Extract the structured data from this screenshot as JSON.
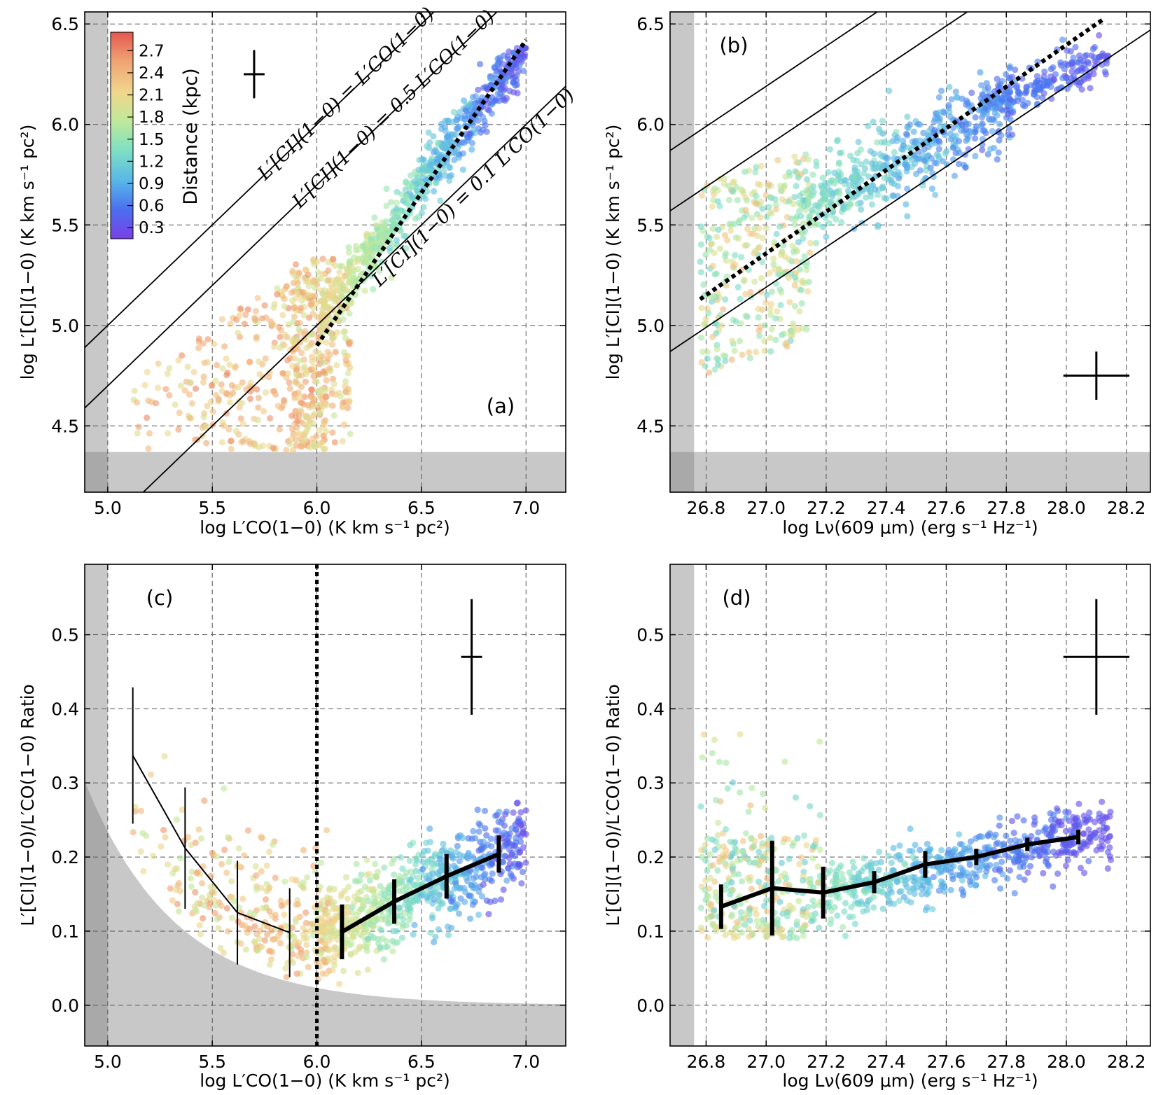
{
  "figure": {
    "colorbar": {
      "title": "Distance (kpc)",
      "ticks": [
        "2.7",
        "2.4",
        "2.1",
        "1.8",
        "1.5",
        "1.2",
        "0.9",
        "0.6",
        "0.3"
      ],
      "tick_values": [
        2.7,
        2.4,
        2.1,
        1.8,
        1.5,
        1.2,
        0.9,
        0.6,
        0.3
      ],
      "range": [
        0.15,
        2.95
      ],
      "colors": [
        "#7b3fe6",
        "#4a6ff0",
        "#59b6e8",
        "#7fe0c2",
        "#bfe99a",
        "#f1d68c",
        "#f0a373",
        "#e4574e"
      ]
    }
  },
  "chart_data": [
    {
      "panel": "a",
      "type": "scatter",
      "label": "(a)",
      "xlabel": "log L′CO(1−0) (K km s⁻¹ pc²)",
      "ylabel": "log L′[CI](1−0) (K km s⁻¹ pc²)",
      "xlim": [
        4.89,
        7.19
      ],
      "ylim": [
        4.17,
        6.56
      ],
      "xticks": [
        "5.0",
        "5.5",
        "6.0",
        "6.5",
        "7.0"
      ],
      "xtick_values": [
        5.0,
        5.5,
        6.0,
        6.5,
        7.0
      ],
      "yticks": [
        "4.5",
        "5.0",
        "5.5",
        "6.0",
        "6.5"
      ],
      "ytick_values": [
        4.5,
        5.0,
        5.5,
        6.0,
        6.5
      ],
      "shaded_left_below_x": 5.0,
      "shaded_bottom_below_y": 4.37,
      "reference_lines": [
        {
          "label": "L′[CI](1−0) = L′CO(1−0)",
          "log_ratio": 0.0
        },
        {
          "label": "L′[CI](1−0) = 0.5 L′CO(1−0)",
          "log_ratio": -0.301
        },
        {
          "label": "L′[CI](1−0) = 0.1 L′CO(1−0)",
          "log_ratio": -1.0
        }
      ],
      "fit_line": {
        "x": [
          6.0,
          7.0
        ],
        "y": [
          4.9,
          6.42
        ]
      },
      "error_cross": {
        "x": 5.7,
        "y": 6.25,
        "dx": 0.05,
        "dy": 0.12
      },
      "point_cloud": [
        {
          "x": [
            5.08,
            6.02
          ],
          "y": [
            4.38,
            5.32
          ],
          "dist": [
            1.9,
            2.7
          ],
          "n": 320
        },
        {
          "x": [
            5.9,
            6.15
          ],
          "y": [
            4.38,
            5.32
          ],
          "dist": [
            1.7,
            2.6
          ],
          "n": 300
        },
        {
          "x": [
            6.1,
            6.72
          ],
          "trend_y": [
            5.15,
            5.95
          ],
          "dist": [
            1.1,
            2.0
          ],
          "n": 600
        },
        {
          "x": [
            6.6,
            7.0
          ],
          "trend_y": [
            5.9,
            6.38
          ],
          "dist": [
            0.3,
            1.0
          ],
          "n": 250
        }
      ]
    },
    {
      "panel": "b",
      "type": "scatter",
      "label": "(b)",
      "xlabel": "log Lν(609 μm) (erg s⁻¹ Hz⁻¹)",
      "ylabel": "log L′[CI](1−0) (K km s⁻¹ pc²)",
      "xlim": [
        26.68,
        28.28
      ],
      "ylim": [
        4.17,
        6.56
      ],
      "xticks": [
        "26.8",
        "27.0",
        "27.2",
        "27.4",
        "27.6",
        "27.8",
        "28.0",
        "28.2"
      ],
      "xtick_values": [
        26.8,
        27.0,
        27.2,
        27.4,
        27.6,
        27.8,
        28.0,
        28.2
      ],
      "yticks": [
        "4.5",
        "5.0",
        "5.5",
        "6.0",
        "6.5"
      ],
      "ytick_values": [
        4.5,
        5.0,
        5.5,
        6.0,
        6.5
      ],
      "shaded_left_below_x": 26.76,
      "shaded_bottom_below_y": 4.37,
      "reference_lines": [
        {
          "y_at_xmin": 5.87,
          "slope": 1.0
        },
        {
          "y_at_xmin": 5.57,
          "slope": 1.0
        },
        {
          "y_at_xmin": 4.87,
          "slope": 1.0
        }
      ],
      "fit_line": {
        "x": [
          26.78,
          28.12
        ],
        "y": [
          5.13,
          6.52
        ]
      },
      "error_cross": {
        "x": 28.1,
        "y": 4.75,
        "dx": 0.11,
        "dy": 0.12
      },
      "point_cloud": [
        {
          "x": [
            26.78,
            27.15
          ],
          "trend_y": [
            4.75,
            5.6
          ],
          "dist": [
            1.3,
            2.5
          ],
          "n": 350
        },
        {
          "x": [
            27.1,
            27.8
          ],
          "trend_y": [
            5.5,
            6.15
          ],
          "dist": [
            0.8,
            1.7
          ],
          "n": 450
        },
        {
          "x": [
            27.7,
            28.15
          ],
          "trend_y": [
            6.05,
            6.35
          ],
          "dist": [
            0.3,
            0.9
          ],
          "n": 200
        }
      ]
    },
    {
      "panel": "c",
      "type": "scatter",
      "label": "(c)",
      "xlabel": "log L′CO(1−0) (K km s⁻¹ pc²)",
      "ylabel": "L′[CI](1−0)/L′CO(1−0) Ratio",
      "xlim": [
        4.89,
        7.19
      ],
      "ylim": [
        -0.055,
        0.595
      ],
      "xticks": [
        "5.0",
        "5.5",
        "6.0",
        "6.5",
        "7.0"
      ],
      "xtick_values": [
        5.0,
        5.5,
        6.0,
        6.5,
        7.0
      ],
      "yticks": [
        "0.0",
        "0.1",
        "0.2",
        "0.3",
        "0.4",
        "0.5"
      ],
      "ytick_values": [
        0.0,
        0.1,
        0.2,
        0.3,
        0.4,
        0.5
      ],
      "shaded_left_below_x": 5.0,
      "threshold_x": 6.0,
      "lower_limit_curve": "ratio = 10^(4.37 - x)",
      "binned_low": {
        "x": [
          5.12,
          5.37,
          5.62,
          5.87
        ],
        "y": [
          0.337,
          0.212,
          0.125,
          0.098
        ],
        "err": [
          0.092,
          0.082,
          0.07,
          0.06
        ]
      },
      "binned_high": {
        "x": [
          6.12,
          6.37,
          6.62,
          6.87
        ],
        "y": [
          0.099,
          0.14,
          0.174,
          0.204
        ],
        "err": [
          0.037,
          0.03,
          0.03,
          0.025
        ]
      },
      "error_cross": {
        "x": 6.74,
        "y": 0.47,
        "dx": 0.05,
        "dy": 0.078
      }
    },
    {
      "panel": "d",
      "type": "scatter",
      "label": "(d)",
      "xlabel": "log Lν(609 μm) (erg s⁻¹ Hz⁻¹)",
      "ylabel": "L′[CI](1−0)/L′CO(1−0) Ratio",
      "xlim": [
        26.68,
        28.28
      ],
      "ylim": [
        -0.055,
        0.595
      ],
      "xticks": [
        "26.8",
        "27.0",
        "27.2",
        "27.4",
        "27.6",
        "27.8",
        "28.0",
        "28.2"
      ],
      "xtick_values": [
        26.8,
        27.0,
        27.2,
        27.4,
        27.6,
        27.8,
        28.0,
        28.2
      ],
      "yticks": [
        "0.0",
        "0.1",
        "0.2",
        "0.3",
        "0.4",
        "0.5"
      ],
      "ytick_values": [
        0.0,
        0.1,
        0.2,
        0.3,
        0.4,
        0.5
      ],
      "shaded_left_below_x": 26.76,
      "binned": {
        "x": [
          26.85,
          27.02,
          27.19,
          27.36,
          27.53,
          27.7,
          27.87,
          28.04
        ],
        "y": [
          0.133,
          0.158,
          0.152,
          0.166,
          0.19,
          0.2,
          0.217,
          0.227
        ],
        "err": [
          0.03,
          0.064,
          0.035,
          0.015,
          0.018,
          0.011,
          0.009,
          0.01
        ]
      },
      "error_cross": {
        "x": 28.1,
        "y": 0.47,
        "dx": 0.11,
        "dy": 0.078
      }
    }
  ]
}
